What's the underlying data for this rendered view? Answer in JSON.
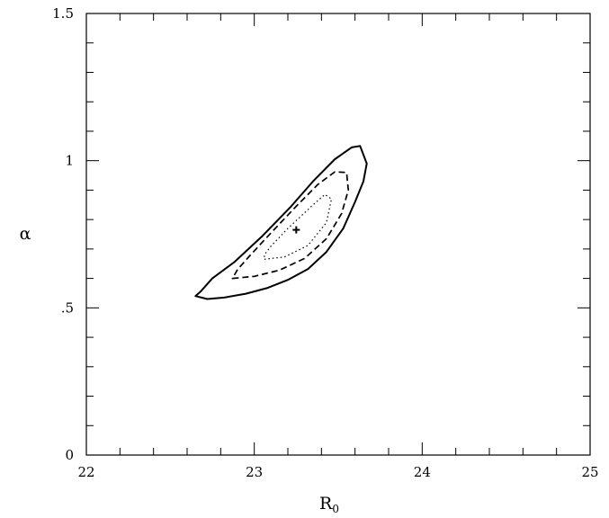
{
  "chart_data": {
    "type": "contour",
    "xlabel": "R",
    "xlabel_subscript": "0",
    "ylabel": "α",
    "xlim": [
      22,
      25
    ],
    "ylim": [
      0,
      1.5
    ],
    "x_ticks": [
      {
        "value": 22,
        "label": "22"
      },
      {
        "value": 23,
        "label": "23"
      },
      {
        "value": 24,
        "label": "24"
      },
      {
        "value": 25,
        "label": "25"
      }
    ],
    "y_ticks": [
      {
        "value": 0,
        "label": "0"
      },
      {
        "value": 0.5,
        "label": ".5"
      },
      {
        "value": 1,
        "label": "1"
      },
      {
        "value": 1.5,
        "label": "1.5"
      }
    ],
    "best_fit": {
      "x": 23.25,
      "y": 0.765
    },
    "series": [
      {
        "style": "solid",
        "points": [
          [
            22.72,
            0.53
          ],
          [
            22.82,
            0.535
          ],
          [
            22.95,
            0.548
          ],
          [
            23.08,
            0.568
          ],
          [
            23.2,
            0.595
          ],
          [
            23.32,
            0.632
          ],
          [
            23.43,
            0.69
          ],
          [
            23.53,
            0.77
          ],
          [
            23.6,
            0.86
          ],
          [
            23.65,
            0.93
          ],
          [
            23.67,
            0.99
          ],
          [
            23.63,
            1.05
          ],
          [
            23.58,
            1.045
          ],
          [
            23.48,
            1.005
          ],
          [
            23.35,
            0.93
          ],
          [
            23.22,
            0.845
          ],
          [
            23.05,
            0.745
          ],
          [
            22.88,
            0.655
          ],
          [
            22.75,
            0.6
          ],
          [
            22.68,
            0.555
          ],
          [
            22.65,
            0.54
          ],
          [
            22.72,
            0.53
          ]
        ]
      },
      {
        "style": "dashed",
        "points": [
          [
            22.87,
            0.6
          ],
          [
            23.0,
            0.607
          ],
          [
            23.15,
            0.628
          ],
          [
            23.3,
            0.668
          ],
          [
            23.43,
            0.735
          ],
          [
            23.52,
            0.82
          ],
          [
            23.56,
            0.9
          ],
          [
            23.55,
            0.96
          ],
          [
            23.48,
            0.962
          ],
          [
            23.38,
            0.92
          ],
          [
            23.25,
            0.845
          ],
          [
            23.1,
            0.755
          ],
          [
            22.97,
            0.675
          ],
          [
            22.9,
            0.63
          ],
          [
            22.87,
            0.6
          ]
        ]
      },
      {
        "style": "dotted",
        "points": [
          [
            23.06,
            0.665
          ],
          [
            23.18,
            0.673
          ],
          [
            23.32,
            0.712
          ],
          [
            23.43,
            0.79
          ],
          [
            23.46,
            0.87
          ],
          [
            23.42,
            0.885
          ],
          [
            23.35,
            0.85
          ],
          [
            23.2,
            0.77
          ],
          [
            23.1,
            0.71
          ],
          [
            23.06,
            0.68
          ],
          [
            23.06,
            0.665
          ]
        ]
      }
    ]
  }
}
